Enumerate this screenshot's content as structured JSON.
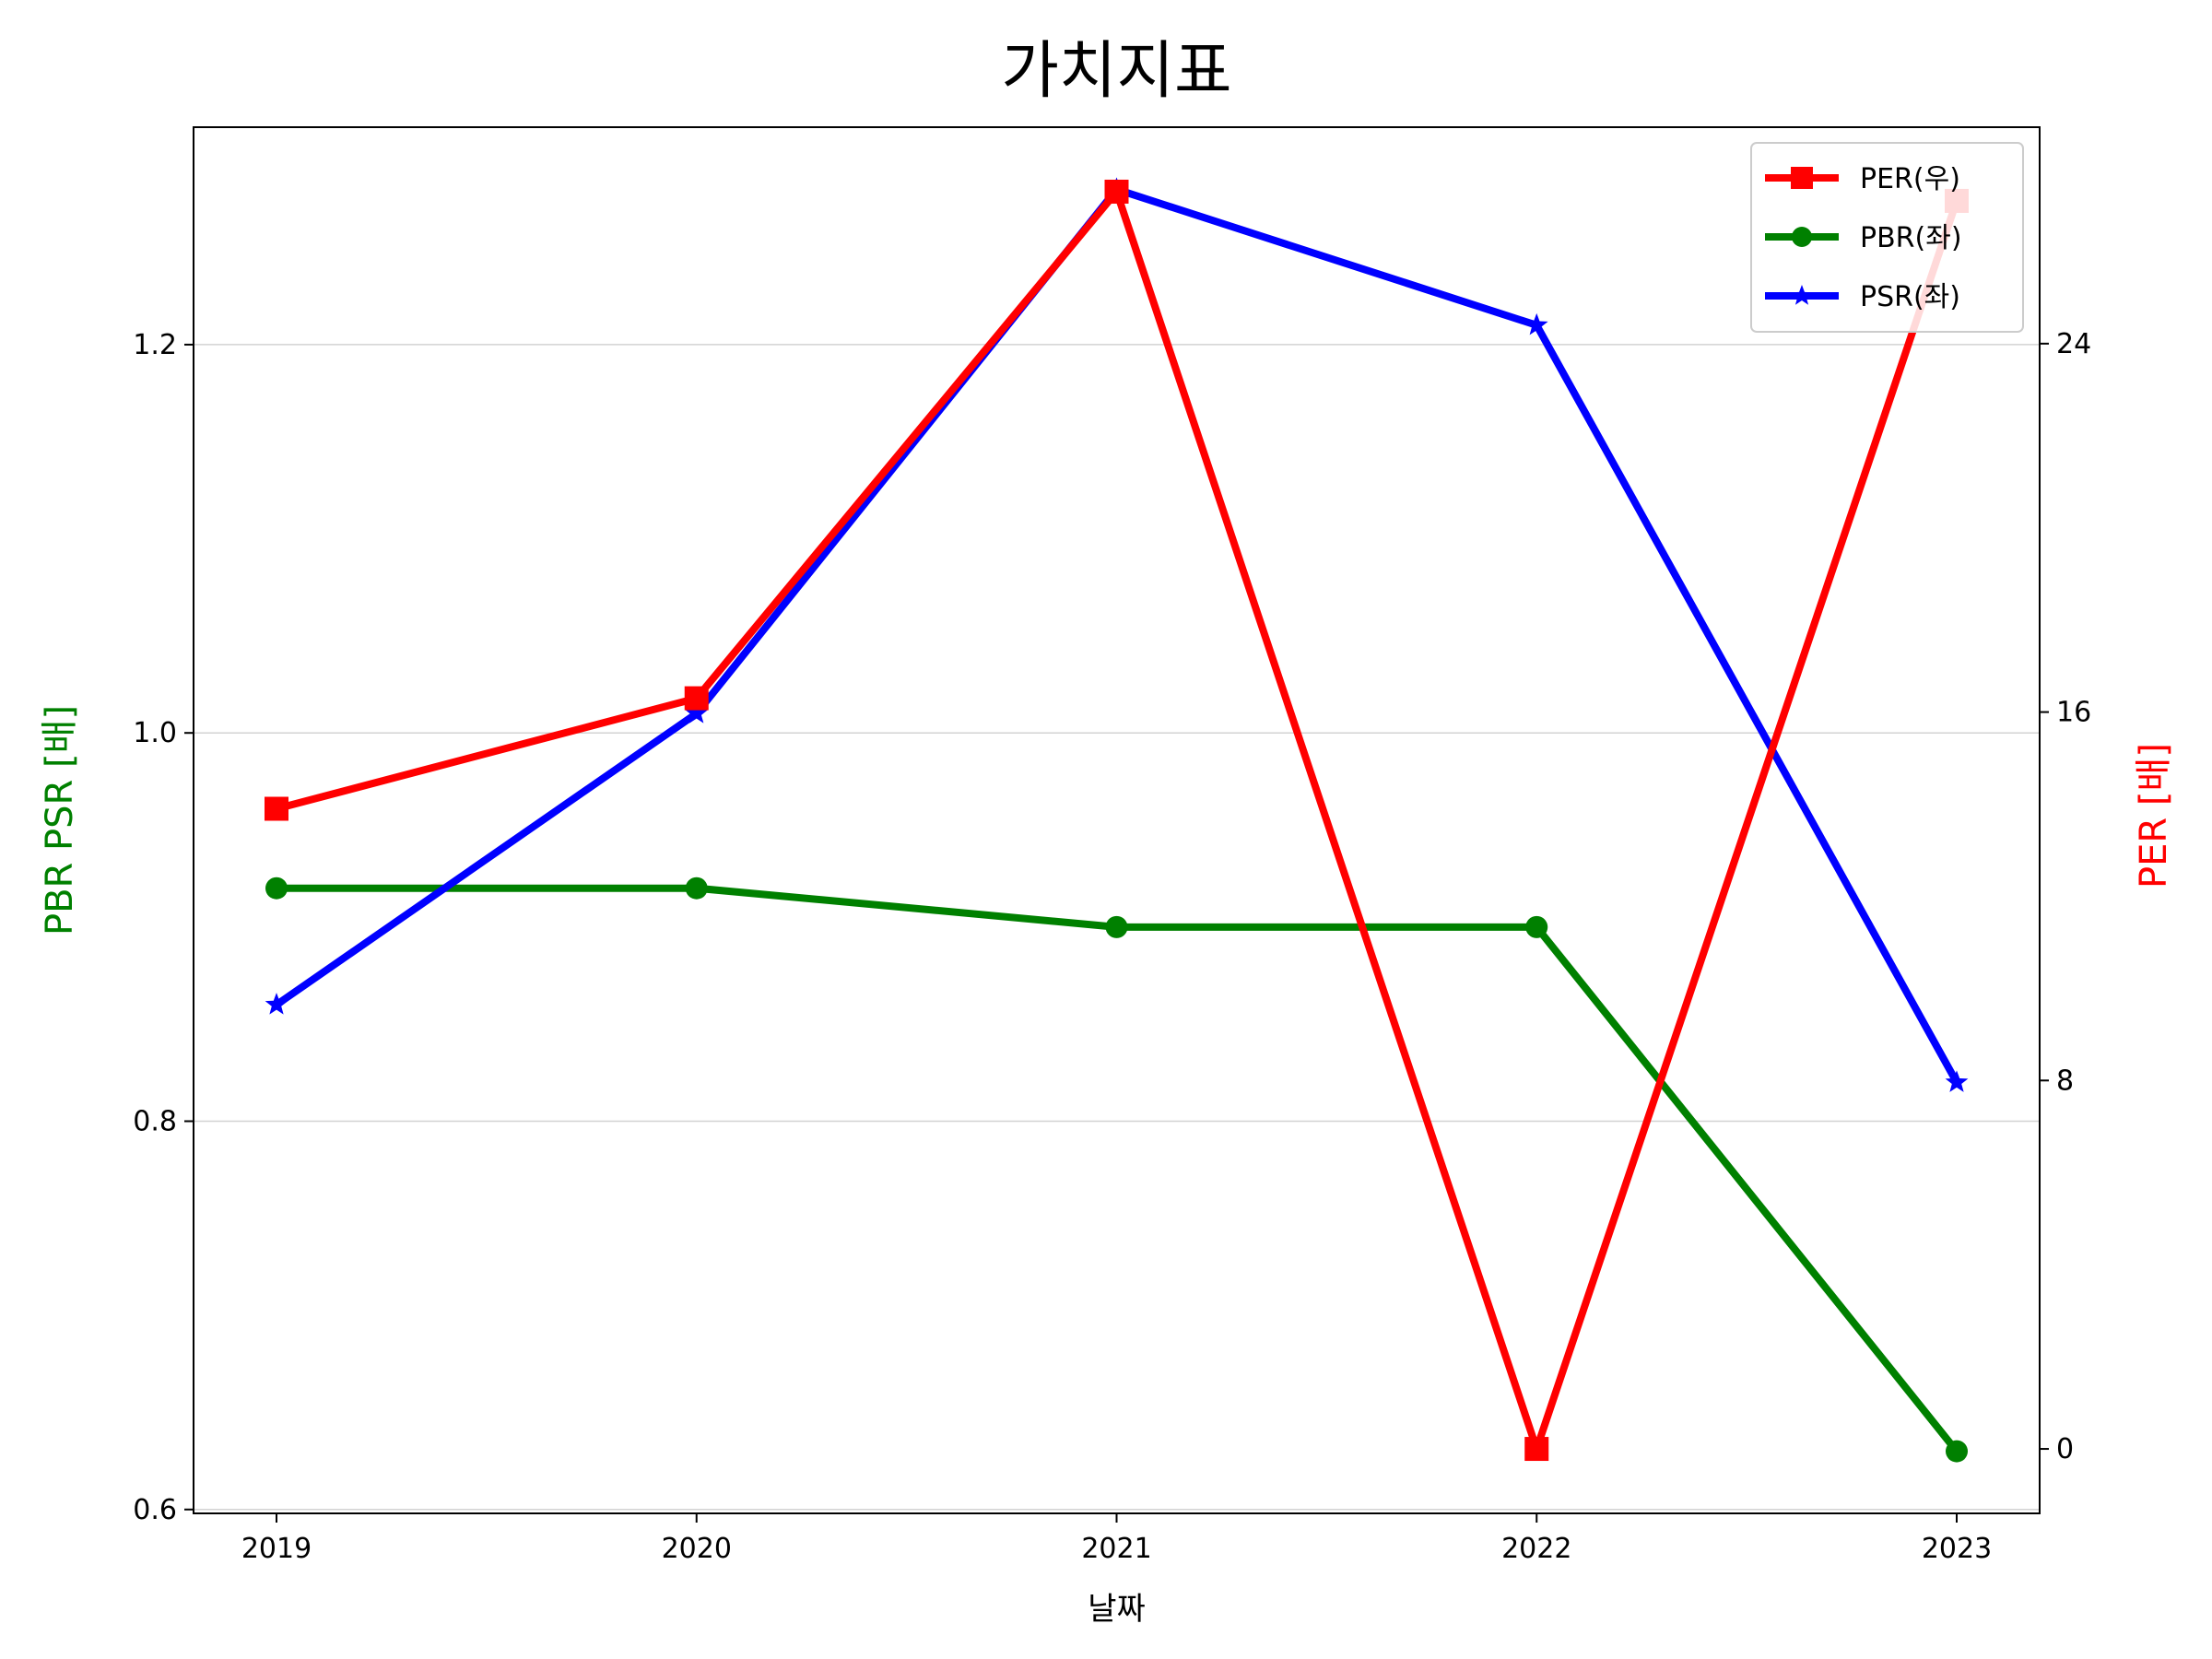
{
  "chart_data": {
    "type": "line",
    "title": "가치지표",
    "xlabel": "날짜",
    "ylabel_left": "PBR PSR [배]",
    "ylabel_right": "PER [배]",
    "x": [
      "2019",
      "2020",
      "2021",
      "2022",
      "2023"
    ],
    "ylim_left": [
      0.598,
      1.312
    ],
    "yticks_left": [
      "0.6",
      "0.8",
      "1.0",
      "1.2"
    ],
    "ylim_right": [
      -1.4,
      28.7
    ],
    "yticks_right": [
      "0",
      "8",
      "16",
      "24"
    ],
    "grid": "horizontal (left axis)",
    "legend_position": "top-right",
    "series": [
      {
        "name": "PER(우)",
        "axis": "right",
        "color": "#ff0000",
        "marker": "square",
        "values": [
          13.9,
          16.3,
          27.3,
          0.0,
          27.1
        ]
      },
      {
        "name": "PBR(좌)",
        "axis": "left",
        "color": "#008000",
        "marker": "circle",
        "values": [
          0.92,
          0.92,
          0.9,
          0.9,
          0.63
        ]
      },
      {
        "name": "PSR(좌)",
        "axis": "left",
        "color": "#0000ff",
        "marker": "star",
        "values": [
          0.86,
          1.01,
          1.28,
          1.21,
          0.82
        ]
      }
    ]
  }
}
